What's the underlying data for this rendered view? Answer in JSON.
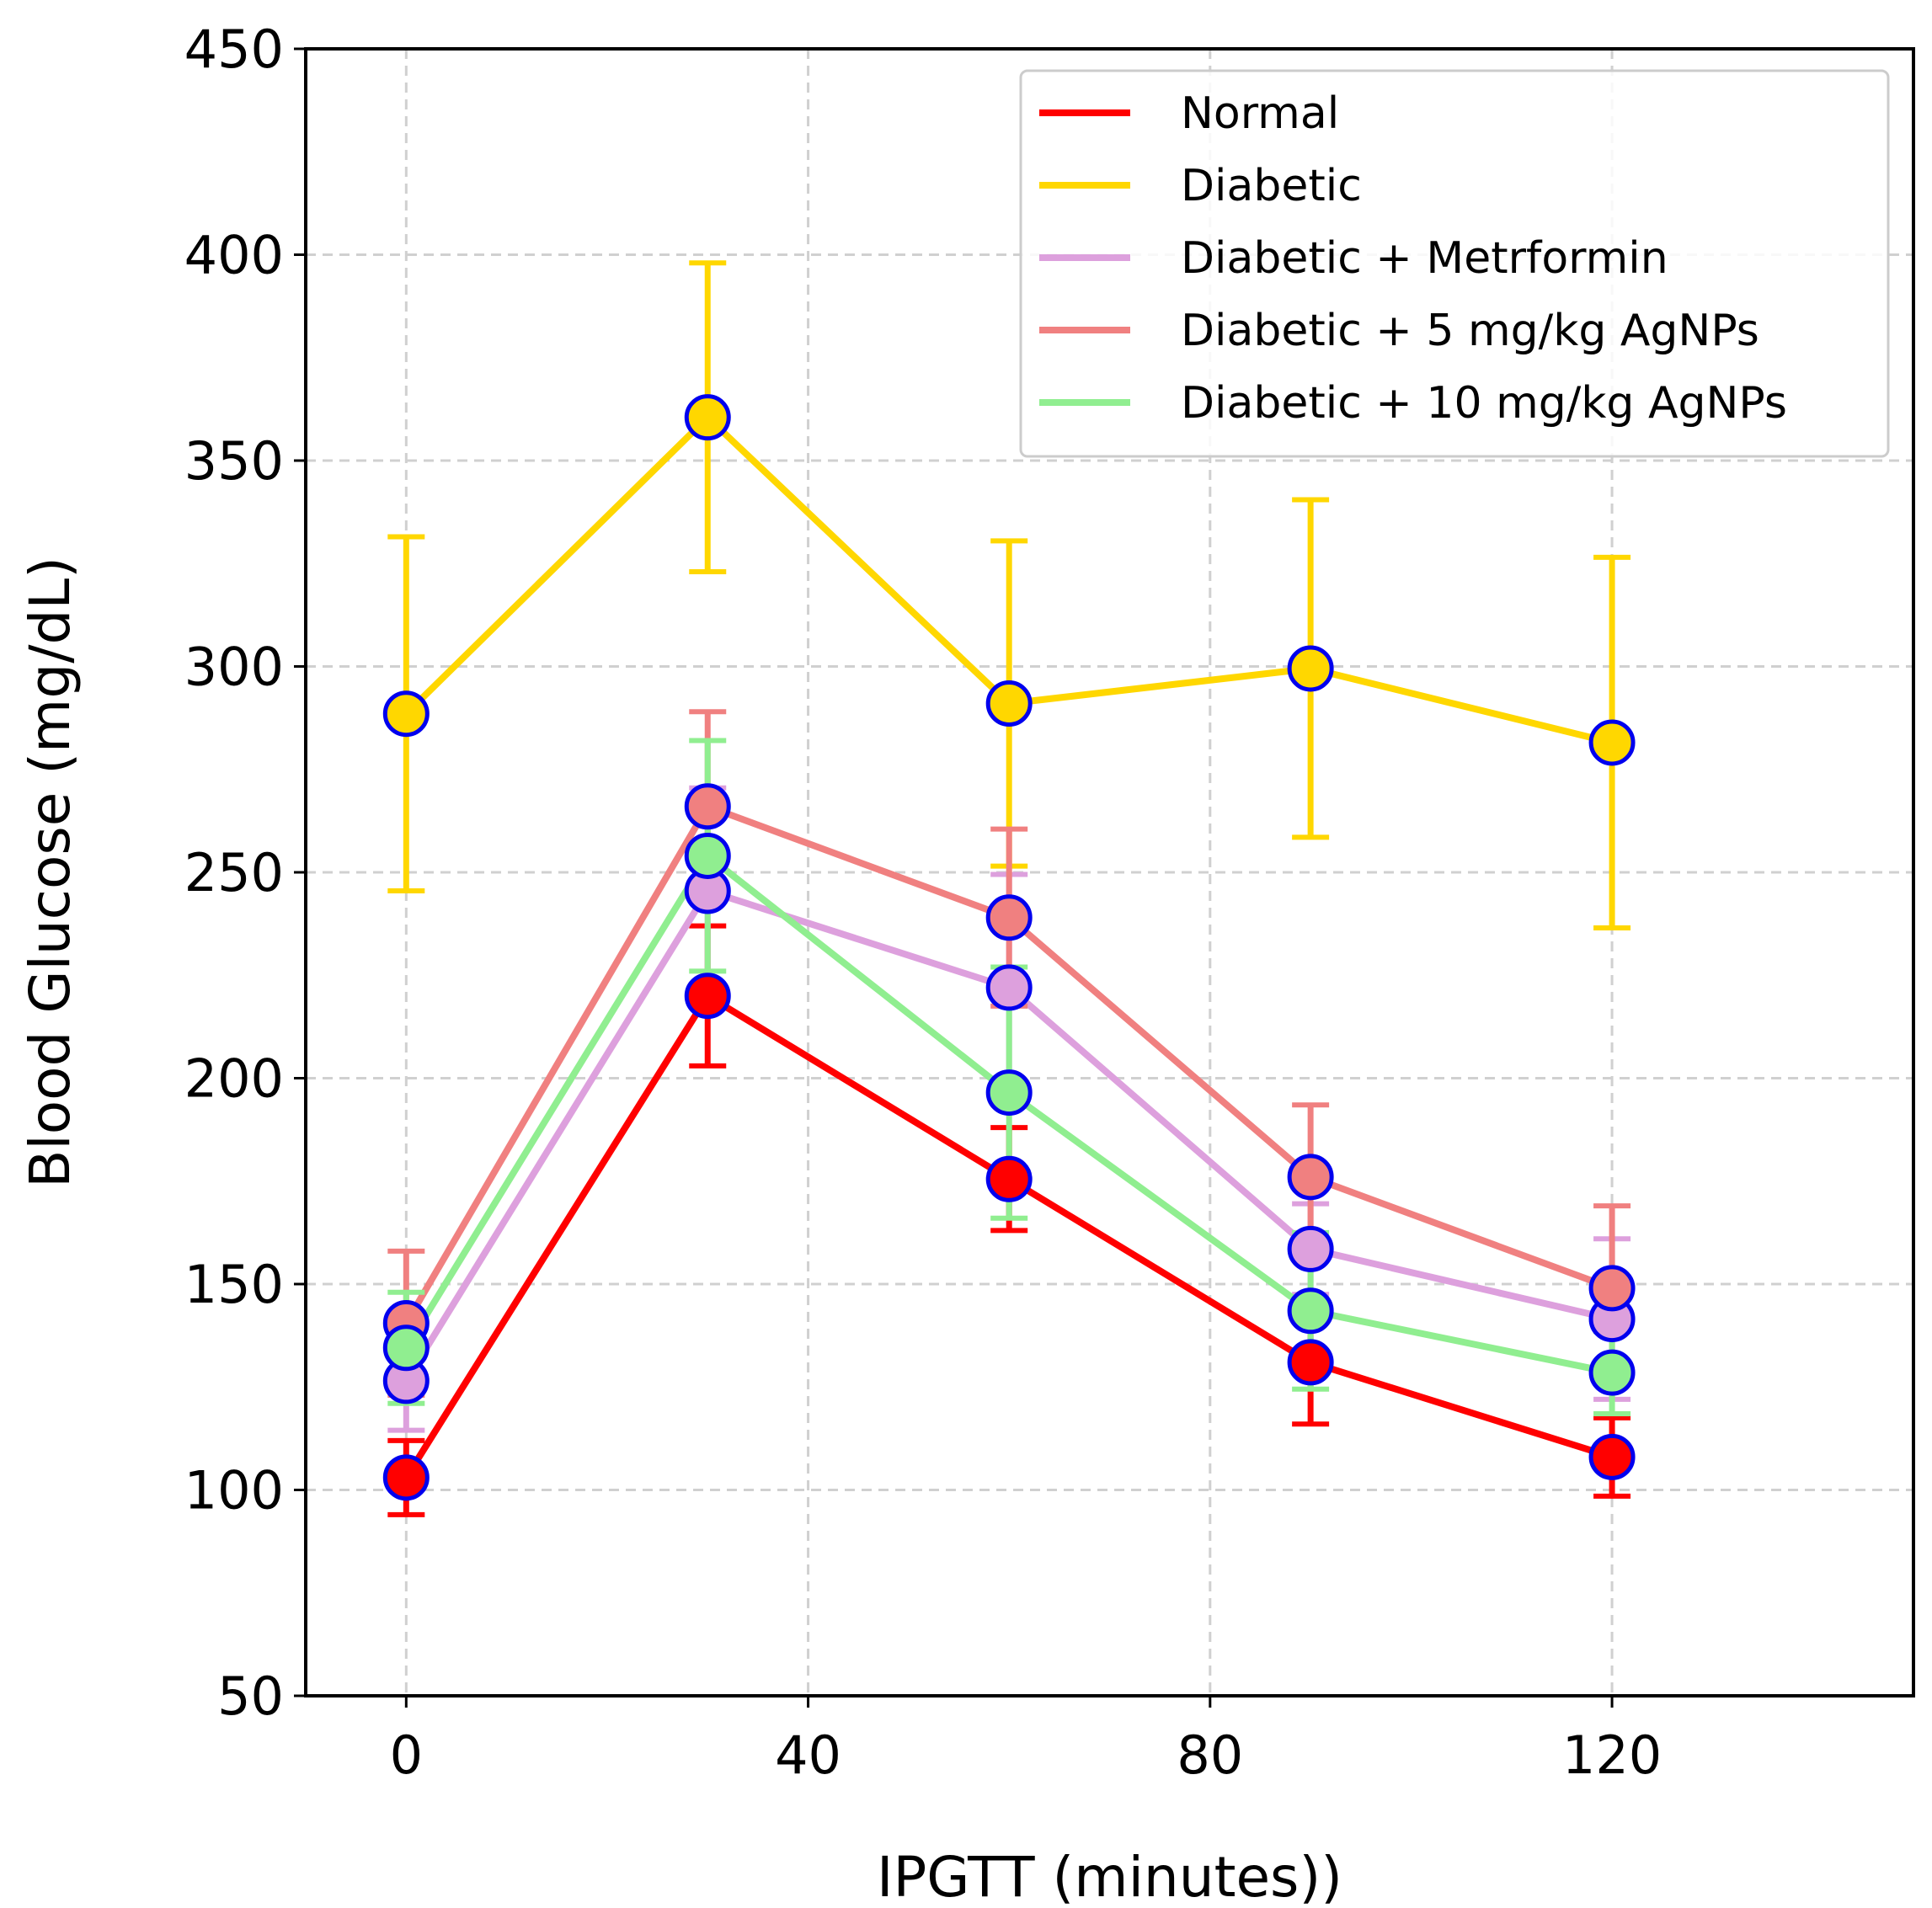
{
  "chart_data": {
    "type": "line",
    "title": "",
    "xlabel": "IPGTT (minutes))",
    "ylabel": "Blood Glucose (mg/dL)",
    "xlim": [
      -10,
      150
    ],
    "ylim": [
      50,
      450
    ],
    "xticks": [
      0,
      40,
      80,
      120
    ],
    "yticks": [
      50,
      100,
      150,
      200,
      250,
      300,
      350,
      400,
      450
    ],
    "grid": true,
    "legend_position": "top-right",
    "marker_edge_color": "#0000ee",
    "x": [
      0,
      30,
      60,
      90,
      120
    ],
    "series": [
      {
        "name": "Normal",
        "color": "#ff0000",
        "values": [
          103,
          220,
          175.5,
          131,
          108
        ],
        "errors": [
          9,
          17,
          12.5,
          15,
          9.5
        ]
      },
      {
        "name": "Diabetic",
        "color": "#ffd700",
        "values": [
          288.5,
          360.5,
          291,
          299.5,
          281.5
        ],
        "errors": [
          43,
          37.5,
          39.5,
          41,
          45
        ]
      },
      {
        "name": "Diabetic + Metrformin",
        "color": "#dda0dd",
        "values": [
          126.5,
          245.5,
          222,
          158.5,
          141.5
        ],
        "errors": [
          12,
          25,
          27.5,
          11,
          19.5
        ]
      },
      {
        "name": "Diabetic + 5 mg/kg AgNPs",
        "color": "#f08080",
        "values": [
          140.5,
          266,
          239,
          176,
          149
        ],
        "errors": [
          17.5,
          23,
          21.5,
          17.5,
          20
        ]
      },
      {
        "name": "Diabetic + 10 mg/kg AgNPs",
        "color": "#90ee90",
        "values": [
          134.5,
          254,
          196.5,
          143.5,
          128.5
        ],
        "errors": [
          13.5,
          28,
          30.5,
          19,
          10
        ]
      }
    ]
  }
}
